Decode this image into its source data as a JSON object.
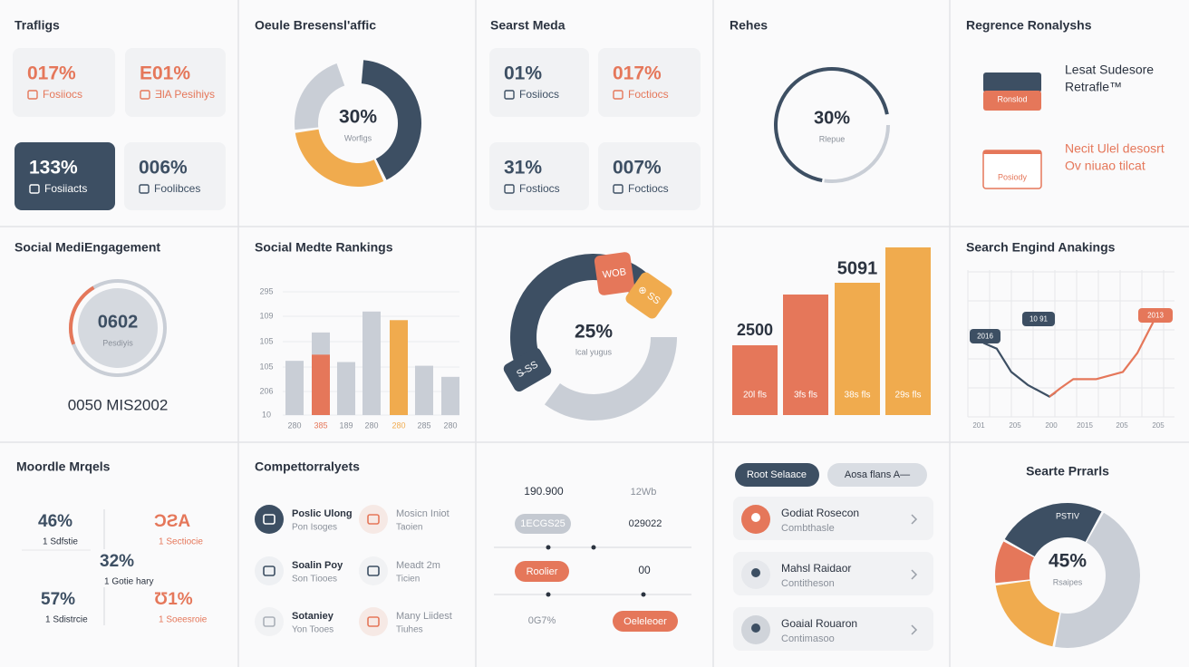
{
  "traffic": {
    "title": "Trafligs",
    "tiles": [
      {
        "value": "017%",
        "label": "Fosiiocs"
      },
      {
        "value": "E01%",
        "label": "ƎlA Pesihiys"
      },
      {
        "value": "133%",
        "label": "Fosiiacts"
      },
      {
        "value": "006%",
        "label": "Foolibces"
      }
    ]
  },
  "browser_traffic": {
    "title": "Oeule Bresensl'affic",
    "center": "30%",
    "caption": "Worfigs",
    "segments": [
      {
        "value": 42,
        "color": "#3d4f63"
      },
      {
        "value": 30,
        "color": "#f0ab4e"
      },
      {
        "value": 22,
        "color": "#c9ced6"
      }
    ]
  },
  "search_media": {
    "title": "Searst Meda",
    "tiles": [
      {
        "value": "01%",
        "label": "Fosiiocs"
      },
      {
        "value": "017%",
        "label": "Foctiocs"
      },
      {
        "value": "31%",
        "label": "Fostiocs"
      },
      {
        "value": "007%",
        "label": "Foctiocs"
      }
    ]
  },
  "rehes": {
    "title": "Rehes",
    "center": "30%",
    "caption": "Rlepue",
    "segments": [
      {
        "value": 70,
        "color": "#3d4f63"
      },
      {
        "value": 28,
        "color": "#c9ced6"
      }
    ]
  },
  "regrence": {
    "title": "Regrence Ronalyshs",
    "items": [
      {
        "badge": "Ronslod",
        "lines": [
          "Lesat Sudesore",
          "Retrafle™"
        ]
      },
      {
        "badge": "Posiody",
        "lines": [
          "Necit Ulel desosrt",
          "Ov niuao tilcat"
        ]
      }
    ]
  },
  "engagement": {
    "title": "Social MediEngagement",
    "center": "0602",
    "caption": "Pesdiyis",
    "progress": 22,
    "footer": "0050 MIS2002"
  },
  "rankings": {
    "title": "Social Medte Rankings",
    "ylim": [
      0,
      100
    ],
    "y_labels": [
      "295",
      "109",
      "105",
      "105",
      "206",
      "10"
    ],
    "x_labels": [
      "280",
      "385",
      "189",
      "280",
      "280",
      "285",
      "280"
    ],
    "bars": [
      [
        {
          "value": 44,
          "color": "#c9ced6"
        }
      ],
      [
        {
          "value": 67,
          "color": "#c9ced6"
        },
        {
          "value": 49,
          "color": "#e5775a"
        }
      ],
      [
        {
          "value": 43,
          "color": "#c9ced6"
        }
      ],
      [
        {
          "value": 84,
          "color": "#c9ced6"
        }
      ],
      [
        {
          "value": 77,
          "color": "#f0ab4e"
        }
      ],
      [
        {
          "value": 40,
          "color": "#c9ced6"
        }
      ],
      [
        {
          "value": 31,
          "color": "#c9ced6"
        }
      ]
    ]
  },
  "donut_tags": {
    "center": "25%",
    "caption": "lcal yugus",
    "segments": [
      {
        "value": 46,
        "color": "#3d4f63"
      },
      {
        "value": 35,
        "color": "#c9ced6"
      }
    ],
    "tags": [
      {
        "label": "WOB",
        "color": "#e5775a"
      },
      {
        "label": "⊗ SS",
        "color": "#f0ab4e"
      },
      {
        "label": "S̶ SS",
        "color": "#3d4f63"
      }
    ]
  },
  "growth_bars": {
    "ylim": [
      0,
      200
    ],
    "annotations": [
      "5091",
      "2500"
    ],
    "bars": [
      {
        "value": 77,
        "color": "#e5775a",
        "label": "20l fls"
      },
      {
        "value": 133,
        "color": "#e5775a",
        "label": "3fs fls"
      },
      {
        "value": 146,
        "color": "#f0ab4e",
        "label": "38s fls"
      },
      {
        "value": 185,
        "color": "#f0ab4e",
        "label": "29s fls"
      }
    ]
  },
  "search_rankings": {
    "title": "Search Engind Anakings",
    "xlim": [
      0,
      10
    ],
    "ylim": [
      0,
      100
    ],
    "x_labels": [
      "201",
      "205",
      "200",
      "2015",
      "205",
      "205"
    ],
    "tags": [
      "2016",
      "10 91",
      "2013"
    ],
    "series": [
      {
        "color": "#3d4f63",
        "x": [
          0.75,
          1.4,
          2.1,
          2.9,
          3.95,
          4.25
        ],
        "y": [
          51,
          47,
          31,
          22,
          14,
          17
        ]
      },
      {
        "color": "#e5775a",
        "x": [
          3.95,
          4.5,
          5.1,
          6.2,
          7.5,
          8.2,
          9.1
        ],
        "y": [
          14,
          20,
          26,
          26,
          31,
          44,
          69
        ]
      }
    ]
  },
  "models": {
    "title": "Moordle Mrqels",
    "stats": [
      {
        "value": "46%",
        "label": "1 Sdfstie"
      },
      {
        "value": "ƆƧA",
        "label": "1 Sectiocie"
      },
      {
        "value": "32%",
        "label": "1 Gotie hary"
      },
      {
        "value": "57%",
        "label": "1 Sdistrcie"
      },
      {
        "value": "Ʊ1%",
        "label": "1 Soeesroie"
      }
    ]
  },
  "competitors": {
    "title": "Compettorralyets",
    "items": [
      {
        "name": "Poslic Ulong",
        "sub": "Pon Isoges"
      },
      {
        "name": "Mosicn Iniot",
        "sub": "Taoien"
      },
      {
        "name": "Soalin Poy",
        "sub": "Son Tiooes"
      },
      {
        "name": "Meadt 2m",
        "sub": "Ticien"
      },
      {
        "name": "Sotaniey",
        "sub": "Yon Tooes"
      },
      {
        "name": "Many Liidest",
        "sub": "Tiuhes"
      }
    ]
  },
  "timeline": {
    "rows": [
      [
        "190.900",
        "12Wb"
      ],
      [
        "1ECGS25",
        "029022"
      ],
      [
        "Roolier",
        "00"
      ],
      [
        "0G7%",
        "Oeleleoer"
      ]
    ]
  },
  "sources": {
    "filters": [
      "Root Selaace",
      "Aosa flans  A—"
    ],
    "items": [
      {
        "name": "Godiat Rosecon",
        "sub": "Combthasle"
      },
      {
        "name": "Mahsl Raidaor",
        "sub": "Contitheson"
      },
      {
        "name": "Goaial Rouaron",
        "sub": "Contimasoo"
      }
    ]
  },
  "search_profile": {
    "title": "Searte Prrarls",
    "center": "45%",
    "caption": "Rsaipes",
    "tag": "PSTIV",
    "segments": [
      {
        "value": 25,
        "color": "#3d4f63"
      },
      {
        "value": 45,
        "color": "#c9ced6"
      },
      {
        "value": 20,
        "color": "#f0ab4e"
      },
      {
        "value": 10,
        "color": "#e5775a"
      }
    ]
  }
}
